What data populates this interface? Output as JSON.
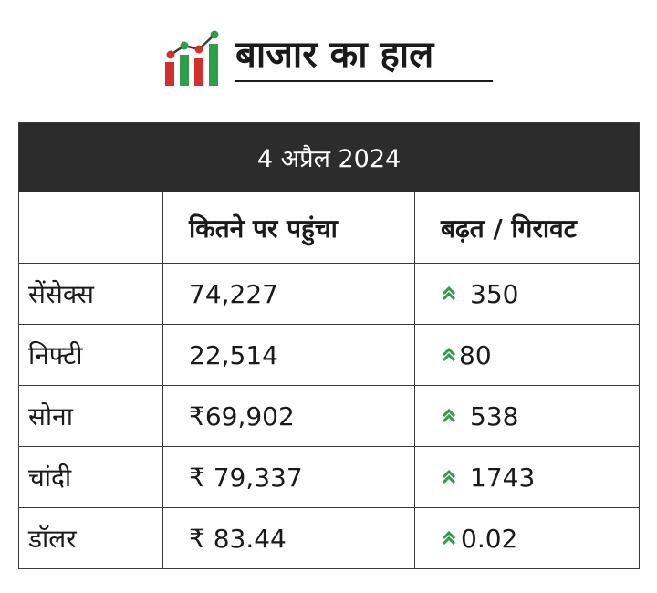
{
  "header": {
    "title": "बाजार का हाल",
    "logo_icon": "bar-chart-growth-icon",
    "logo_colors": {
      "red": "#d32f2f",
      "green": "#2e9e4a",
      "dark": "#3a3a3a"
    }
  },
  "table": {
    "date": "4 अप्रैल 2024",
    "columns": [
      "",
      "कितने पर पहुंचा",
      "बढ़त / गिरावट"
    ],
    "rows": [
      {
        "name": "सेंसेक्स",
        "value": "74,227",
        "change": "350",
        "trend": "up"
      },
      {
        "name": "निफ्टी",
        "value": "22,514",
        "change": "80",
        "trend": "up"
      },
      {
        "name": "सोना",
        "value": "₹69,902",
        "change": "538",
        "trend": "up"
      },
      {
        "name": "चांदी",
        "value": "₹ 79,337",
        "change": "1743",
        "trend": "up"
      },
      {
        "name": "डॉलर",
        "value": "₹ 83.44",
        "change": "0.02",
        "trend": "up"
      }
    ],
    "trend_icon": "double-chevron-up-icon",
    "trend_color": "#2e9e4a",
    "header_bg": "#2c2c2c"
  }
}
